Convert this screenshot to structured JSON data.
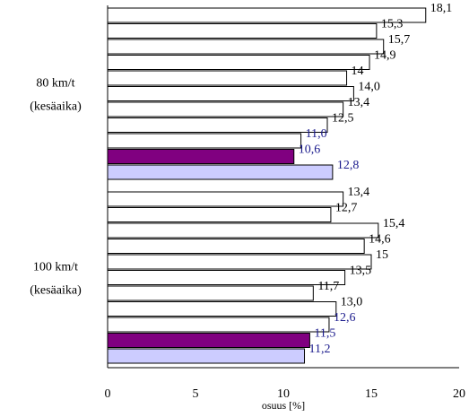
{
  "chart_data": {
    "type": "bar",
    "orientation": "horizontal",
    "xlabel": "osuus [%]",
    "xlim": [
      0,
      20
    ],
    "xticks": [
      "0",
      "5",
      "10",
      "15",
      "20"
    ],
    "grid": false,
    "groups": [
      {
        "label_lines": [
          "80 km/t",
          "(kesäaika)"
        ],
        "bars": [
          {
            "value": 18.1,
            "label": "18,1",
            "style": "plain"
          },
          {
            "value": 15.3,
            "label": "15,3",
            "style": "plain"
          },
          {
            "value": 15.7,
            "label": "15,7",
            "style": "plain"
          },
          {
            "value": 14.9,
            "label": "14,9",
            "style": "plain"
          },
          {
            "value": 13.6,
            "label": "14",
            "style": "plain"
          },
          {
            "value": 14.0,
            "label": "14,0",
            "style": "plain"
          },
          {
            "value": 13.4,
            "label": "13,4",
            "style": "plain"
          },
          {
            "value": 12.5,
            "label": "12,5",
            "style": "plain"
          },
          {
            "value": 11.0,
            "label": "11,0",
            "style": "highlight-white"
          },
          {
            "value": 10.6,
            "label": "10,6",
            "style": "purple"
          },
          {
            "value": 12.8,
            "label": "12,8",
            "style": "lavender"
          }
        ]
      },
      {
        "label_lines": [
          "100 km/t",
          "(kesäaika)"
        ],
        "bars": [
          {
            "value": 13.4,
            "label": "13,4",
            "style": "plain"
          },
          {
            "value": 12.7,
            "label": "12,7",
            "style": "plain"
          },
          {
            "value": 15.4,
            "label": "15,4",
            "style": "plain"
          },
          {
            "value": 14.6,
            "label": "14,6",
            "style": "plain"
          },
          {
            "value": 15.0,
            "label": "15",
            "style": "plain"
          },
          {
            "value": 13.5,
            "label": "13,5",
            "style": "plain"
          },
          {
            "value": 11.7,
            "label": "11,7",
            "style": "plain"
          },
          {
            "value": 13.0,
            "label": "13,0",
            "style": "plain"
          },
          {
            "value": 12.6,
            "label": "12,6",
            "style": "highlight-white"
          },
          {
            "value": 11.5,
            "label": "11,5",
            "style": "purple"
          },
          {
            "value": 11.2,
            "label": "11,2",
            "style": "lavender"
          }
        ]
      }
    ],
    "colors": {
      "plain_fill": "#ffffff",
      "purple_fill": "#800080",
      "lavender_fill": "#ccccff",
      "bar_stroke": "#000000",
      "plain_label": "#000000",
      "highlight_label": "#1a1a8c"
    }
  }
}
